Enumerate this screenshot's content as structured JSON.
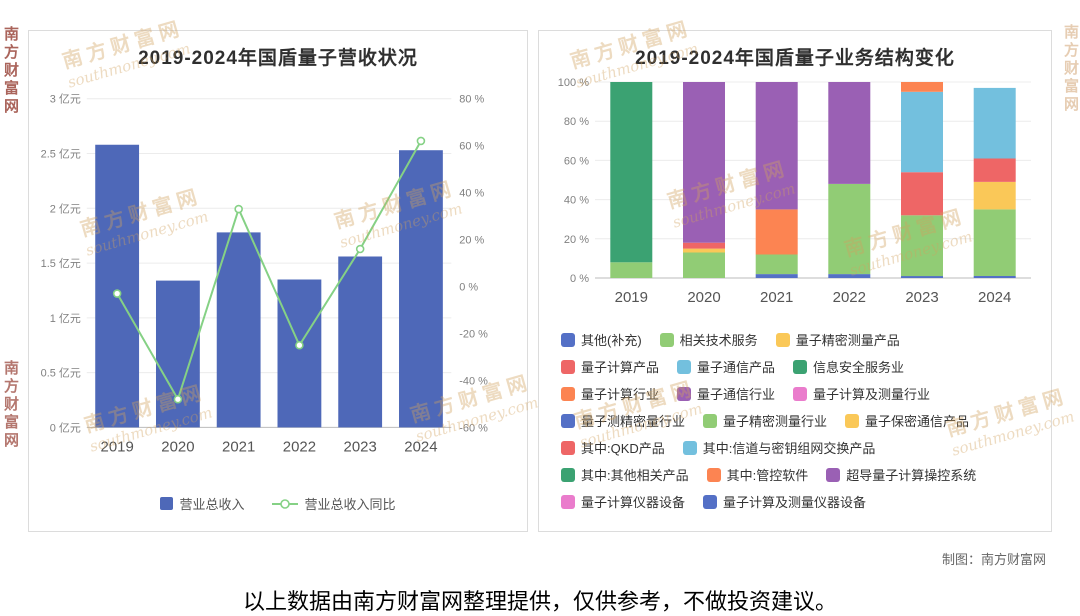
{
  "page": {
    "caption": "以上数据由南方财富网整理提供，仅供参考，不做投资建议。",
    "credit": "制图：南方财富网",
    "watermark": {
      "cn": "南方财富网",
      "en": "southmoney.com"
    }
  },
  "chart_data": [
    {
      "type": "bar",
      "title": "2019-2024年国盾量子营收状况",
      "categories": [
        "2019",
        "2020",
        "2021",
        "2022",
        "2023",
        "2024"
      ],
      "series": [
        {
          "name": "营业总收入",
          "type": "bar",
          "unit": "亿元",
          "color": "#4e68b8",
          "axis": "left",
          "values": [
            2.58,
            1.34,
            1.78,
            1.35,
            1.56,
            2.53
          ]
        },
        {
          "name": "营业总收入同比",
          "type": "line",
          "unit": "%",
          "color": "#85d185",
          "axis": "right",
          "values": [
            -3,
            -48,
            33,
            -25,
            16,
            62
          ]
        }
      ],
      "left_axis": {
        "min": 0,
        "max": 3,
        "step": 0.5,
        "suffix": " 亿元"
      },
      "right_axis": {
        "min": -60,
        "max": 80,
        "step": 20,
        "suffix": " %"
      },
      "grid": true,
      "legend_position": "bottom"
    },
    {
      "type": "bar",
      "subtype": "stacked-percent",
      "title": "2019-2024年国盾量子业务结构变化",
      "categories": [
        "2019",
        "2020",
        "2021",
        "2022",
        "2023",
        "2024"
      ],
      "y_axis": {
        "min": 0,
        "max": 100,
        "step": 20,
        "suffix": " %"
      },
      "series": [
        {
          "name": "其他(补充)",
          "color": "#5470c6",
          "values": [
            0,
            0,
            2,
            2,
            1,
            1
          ]
        },
        {
          "name": "相关技术服务",
          "color": "#91cc75",
          "values": [
            8,
            13,
            10,
            46,
            31,
            34
          ]
        },
        {
          "name": "量子精密测量产品",
          "color": "#fac858",
          "values": [
            0,
            2,
            0,
            0,
            0,
            14
          ]
        },
        {
          "name": "量子计算产品",
          "color": "#ee6666",
          "values": [
            0,
            3,
            0,
            0,
            22,
            12
          ]
        },
        {
          "name": "量子计算行业",
          "color": "#fc8452",
          "values": [
            0,
            0,
            23,
            0,
            0,
            0
          ]
        },
        {
          "name": "量子通信行业",
          "color": "#9a60b4",
          "values": [
            0,
            82,
            65,
            52,
            0,
            0
          ]
        },
        {
          "name": "信息安全服务业",
          "color": "#3ba272",
          "values": [
            92,
            0,
            0,
            0,
            0,
            0
          ]
        },
        {
          "name": "其中:信道与密钥组网交换产品",
          "color": "#73c0de",
          "values": [
            0,
            0,
            0,
            0,
            41,
            36
          ]
        },
        {
          "name": "其中:管控软件",
          "color": "#fc8452",
          "values": [
            0,
            0,
            0,
            0,
            5,
            0
          ]
        }
      ],
      "legend_rows": [
        [
          {
            "label": "其他(补充)",
            "color": "#5470c6"
          },
          {
            "label": "相关技术服务",
            "color": "#91cc75"
          },
          {
            "label": "量子精密测量产品",
            "color": "#fac858"
          }
        ],
        [
          {
            "label": "量子计算产品",
            "color": "#ee6666"
          },
          {
            "label": "量子通信产品",
            "color": "#73c0de"
          },
          {
            "label": "信息安全服务业",
            "color": "#3ba272"
          }
        ],
        [
          {
            "label": "量子计算行业",
            "color": "#fc8452"
          },
          {
            "label": "量子通信行业",
            "color": "#9a60b4"
          },
          {
            "label": "量子计算及测量行业",
            "color": "#ea7ccc"
          }
        ],
        [
          {
            "label": "量子测精密量行业",
            "color": "#5470c6"
          },
          {
            "label": "量子精密测量行业",
            "color": "#91cc75"
          },
          {
            "label": "量子保密通信产品",
            "color": "#fac858"
          }
        ],
        [
          {
            "label": "其中:QKD产品",
            "color": "#ee6666"
          },
          {
            "label": "其中:信道与密钥组网交换产品",
            "color": "#73c0de"
          }
        ],
        [
          {
            "label": "其中:其他相关产品",
            "color": "#3ba272"
          },
          {
            "label": "其中:管控软件",
            "color": "#fc8452"
          },
          {
            "label": "超导量子计算操控系统",
            "color": "#9a60b4"
          }
        ],
        [
          {
            "label": "量子计算仪器设备",
            "color": "#ea7ccc"
          },
          {
            "label": "量子计算及测量仪器设备",
            "color": "#5470c6"
          }
        ]
      ],
      "legend_position": "bottom"
    }
  ]
}
